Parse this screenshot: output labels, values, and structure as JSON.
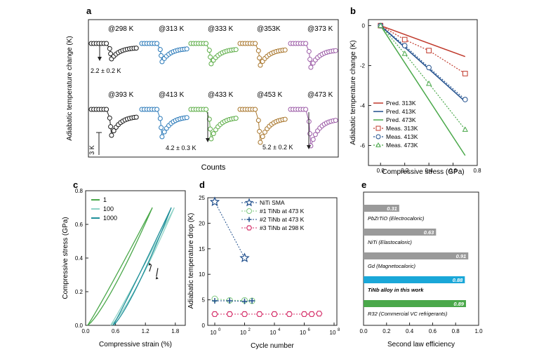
{
  "colors": {
    "black": "#1a1a1a",
    "blue": "#2878b8",
    "green": "#5aac44",
    "brown": "#a8752a",
    "purple": "#9b5aa6",
    "red": "#c0392b",
    "teal": "#1f8f9a",
    "navy": "#1f4e8c",
    "lightgreen": "#7fc97f",
    "pink": "#d6336c",
    "gray": "#9a9a9a",
    "cyan": "#1aa7d8",
    "darkgreen": "#4aa84a"
  },
  "panel_labels": {
    "a": "a",
    "b": "b",
    "c": "c",
    "d": "d",
    "e": "e"
  },
  "chart_data": [
    {
      "id": "a",
      "type": "scatter",
      "xlabel": "Counts",
      "ylabel": "Adiabatic temperature change (K)",
      "temperatures": [
        "@298 K",
        "@313 K",
        "@333 K",
        "@353K",
        "@373 K",
        "@393 K",
        "@413 K",
        "@433 K",
        "@453 K",
        "@473 K"
      ],
      "annotations": [
        "2.2 ± 0.2 K",
        "4.2 ± 0.3 K",
        "5.2 ± 0.2 K"
      ],
      "scale_bar": "3 K",
      "drops_K": [
        2.2,
        2.6,
        2.9,
        3.1,
        3.4,
        3.7,
        3.9,
        4.2,
        4.7,
        5.2
      ]
    },
    {
      "id": "b",
      "type": "line",
      "xlabel": "Compressive stress (GPa)",
      "ylabel": "Adiabatic temperature change (K)",
      "xlim": [
        -0.1,
        0.8
      ],
      "ylim": [
        -7,
        0.3
      ],
      "xticks": [
        "0.0",
        "0.2",
        "0.4",
        "0.6",
        "0.8"
      ],
      "yticks": [
        "0",
        "-2",
        "-4",
        "-6"
      ],
      "legend": [
        "Pred. 313K",
        "Pred. 413K",
        "Pred. 473K",
        "Meas. 313K",
        "Meas. 413K",
        "Meas. 473K"
      ],
      "pred": [
        {
          "name": "Pred. 313K",
          "x": [
            0,
            0.7
          ],
          "y": [
            0,
            -1.55
          ]
        },
        {
          "name": "Pred. 413K",
          "x": [
            0,
            0.7
          ],
          "y": [
            0,
            -3.8
          ]
        },
        {
          "name": "Pred. 473K",
          "x": [
            0,
            0.7
          ],
          "y": [
            0,
            -6.5
          ]
        }
      ],
      "meas": [
        {
          "name": "Meas. 313K",
          "x": [
            0,
            0.2,
            0.4,
            0.7
          ],
          "y": [
            0,
            -0.7,
            -1.25,
            -2.4
          ]
        },
        {
          "name": "Meas. 413K",
          "x": [
            0,
            0.2,
            0.4,
            0.7
          ],
          "y": [
            0,
            -1.0,
            -2.1,
            -3.7
          ]
        },
        {
          "name": "Meas. 473K",
          "x": [
            0,
            0.2,
            0.4,
            0.7
          ],
          "y": [
            0,
            -1.4,
            -2.9,
            -5.2
          ]
        }
      ]
    },
    {
      "id": "c",
      "type": "line",
      "xlabel": "Compressive strain (%)",
      "ylabel": "Compressive stress (GPa)",
      "xlim": [
        0,
        2.0
      ],
      "ylim": [
        0,
        0.8
      ],
      "xticks": [
        "0.0",
        "0.6",
        "1.2",
        "1.8"
      ],
      "yticks": [
        "0.0",
        "0.2",
        "0.4",
        "0.6",
        "0.8"
      ],
      "legend": [
        "1",
        "100",
        "1000"
      ]
    },
    {
      "id": "d",
      "type": "scatter",
      "xlabel": "Cycle number",
      "ylabel": "Adiabatic temperature drop (K)",
      "ylim": [
        0,
        25
      ],
      "yticks": [
        "0",
        "5",
        "10",
        "15",
        "20",
        "25"
      ],
      "xticks": [
        "10",
        "10",
        "10",
        "10",
        "10"
      ],
      "xtick_exps": [
        "0",
        "2",
        "4",
        "6",
        "8"
      ],
      "legend": [
        "NiTi SMA",
        "#1 TiNb at 473 K",
        "#2 TiNb at 473 K",
        "#3 TiNb at 298 K"
      ],
      "series": [
        {
          "name": "NiTi SMA",
          "log_x": [
            0,
            2
          ],
          "y": [
            24.2,
            13.2
          ]
        },
        {
          "name": "#1 TiNb at 473 K",
          "log_x": [
            0,
            1,
            2,
            2.5
          ],
          "y": [
            5.2,
            4.9,
            4.9,
            4.8
          ]
        },
        {
          "name": "#2 TiNb at 473 K",
          "log_x": [
            0,
            1,
            2,
            2.5
          ],
          "y": [
            4.8,
            4.8,
            4.7,
            4.8
          ]
        },
        {
          "name": "#3 TiNb at 298 K",
          "log_x": [
            0,
            1,
            2,
            3,
            4,
            5,
            6,
            6.5,
            7
          ],
          "y": [
            2.2,
            2.2,
            2.2,
            2.2,
            2.2,
            2.2,
            2.2,
            2.2,
            2.3
          ]
        }
      ]
    },
    {
      "id": "e",
      "type": "bar",
      "xlabel": "Second law efficiency",
      "xlim": [
        0,
        1.0
      ],
      "xticks": [
        "0.0",
        "0.2",
        "0.4",
        "0.6",
        "0.8",
        "1.0"
      ],
      "categories": [
        "PbZrTiO (Electrocaloric)",
        "NiTi (Elastocaloric)",
        "Gd (Magnetocaloric)",
        "TiNb alloy in this work",
        "R32 (Commercial VC refrigerants)"
      ],
      "values": [
        0.31,
        0.63,
        0.91,
        0.88,
        0.89
      ],
      "value_labels": [
        "0.31",
        "0.63",
        "0.91",
        "0.88",
        "0.89"
      ]
    }
  ]
}
